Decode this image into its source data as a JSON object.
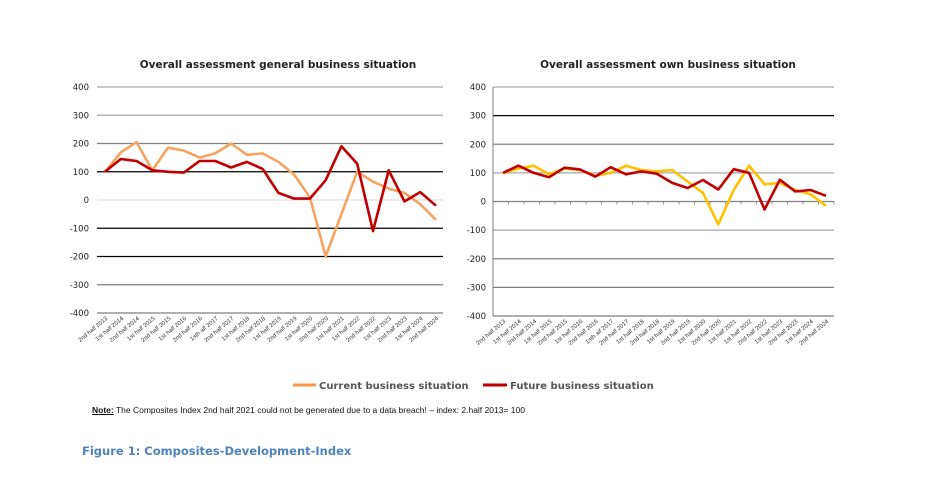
{
  "chart_data": [
    {
      "type": "line",
      "title": "Overall assessment general business situation",
      "xlabel": "",
      "ylabel": "",
      "ylim": [
        -400,
        400
      ],
      "yticks": [
        400,
        300,
        200,
        100,
        0,
        -100,
        -200,
        -300,
        -400
      ],
      "grid": true,
      "categories": [
        "2nd half 2013",
        "1st half 2014",
        "2nd half 2014",
        "1st half 2015",
        "2nd half 2015",
        "1st half 2016",
        "2nd half 2016",
        "1sth alf 2017",
        "2nd half 2017",
        "1st half 2018",
        "2nd half 2018",
        "1st half 2019",
        "2nd half 2019",
        "1st half 2020",
        "2nd half 2020",
        "1st half 2021",
        "1st half 2022",
        "2nd half 2022",
        "1st half 2023",
        "2nd half 2023",
        "1st half 2024",
        "2nd half 2024"
      ],
      "series": [
        {
          "name": "Current business situation",
          "color": "#f4a460",
          "values": [
            100,
            168,
            205,
            105,
            185,
            175,
            150,
            165,
            200,
            160,
            165,
            135,
            90,
            10,
            -200,
            -50,
            100,
            65,
            40,
            25,
            -15,
            -70
          ]
        },
        {
          "name": "Future business situation",
          "color": "#c00000",
          "values": [
            100,
            145,
            138,
            105,
            100,
            97,
            138,
            138,
            115,
            135,
            110,
            25,
            5,
            5,
            70,
            190,
            128,
            -110,
            105,
            -5,
            28,
            -20
          ]
        }
      ]
    },
    {
      "type": "line",
      "title": "Overall assessment own business situation",
      "xlabel": "",
      "ylabel": "",
      "ylim": [
        -400,
        400
      ],
      "yticks": [
        400,
        300,
        200,
        100,
        0,
        -100,
        -200,
        -300,
        -400
      ],
      "grid": true,
      "categories": [
        "2nd half 2013",
        "1st half 2014",
        "2nd half 2014",
        "1st half 2015",
        "2nd half 2015",
        "1st half 2016",
        "2nd half 2016",
        "1sth alf 2017",
        "2nd half 2017",
        "1st half 2018",
        "2nd half 2018",
        "1st half 2019",
        "2nd half 2019",
        "1st half 2020",
        "2nd half 2020",
        "1st half 2021",
        "1st half 2022",
        "2nd half 2022",
        "1st half 2023",
        "2nd half 2023",
        "1st half 2024",
        "2nd half 2024"
      ],
      "series": [
        {
          "name": "Current business situation",
          "color": "#ffc000",
          "values": [
            100,
            115,
            125,
            95,
            115,
            110,
            90,
            100,
            125,
            110,
            105,
            110,
            70,
            30,
            -80,
            40,
            125,
            60,
            65,
            40,
            25,
            -15
          ]
        },
        {
          "name": "Future business situation",
          "color": "#c00000",
          "values": [
            100,
            125,
            100,
            85,
            118,
            112,
            87,
            120,
            95,
            105,
            97,
            65,
            47,
            75,
            42,
            113,
            100,
            -28,
            76,
            35,
            40,
            20
          ]
        }
      ]
    }
  ],
  "legend": {
    "position": "bottom",
    "items": [
      {
        "label": "Current business situation",
        "color": "#f79646"
      },
      {
        "label": "Future business situation",
        "color": "#c00000"
      }
    ]
  },
  "note": {
    "label": "Note:",
    "text": " The Composites Index 2nd half  2021 could not be generated due to a data breach! – index: 2.half 2013= 100"
  },
  "caption": "Figure 1: Composites-Development-Index"
}
